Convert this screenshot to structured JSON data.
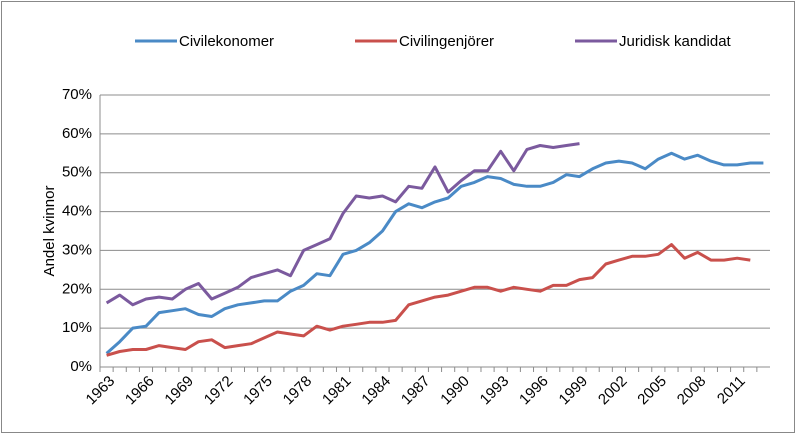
{
  "chart_data": {
    "type": "line",
    "y_label": "Andel kvinnor",
    "categories": [
      "1963",
      null,
      null,
      "1966",
      null,
      null,
      "1969",
      null,
      null,
      "1972",
      null,
      null,
      "1975",
      null,
      null,
      "1978",
      null,
      null,
      "1981",
      null,
      null,
      "1984",
      null,
      null,
      "1987",
      null,
      null,
      "1990",
      null,
      null,
      "1993",
      null,
      null,
      "1996",
      null,
      null,
      "1999",
      null,
      null,
      "2002",
      null,
      null,
      "2005",
      null,
      null,
      "2008",
      null,
      null,
      "2011",
      null,
      null
    ],
    "series": [
      {
        "name": "Civilekonomer",
        "color": "#4a8ac6",
        "values": [
          3.5,
          6.5,
          10,
          10.5,
          14,
          14.5,
          15,
          13.5,
          13,
          15,
          16,
          16.5,
          17,
          17,
          19.5,
          21,
          24,
          23.5,
          29,
          30,
          32,
          35,
          40,
          42,
          41,
          42.5,
          43.5,
          46.5,
          47.5,
          49,
          48.5,
          47,
          46.5,
          46.5,
          47.5,
          49.5,
          49,
          51,
          52.5,
          53,
          52.5,
          51,
          53.5,
          55,
          53.5,
          54.5,
          53,
          52,
          52,
          52.5,
          52.5
        ]
      },
      {
        "name": "Civilingenjörer",
        "color": "#c9504c",
        "values": [
          3,
          4,
          4.5,
          4.5,
          5.5,
          5,
          4.5,
          6.5,
          7,
          5,
          5.5,
          6,
          7.5,
          9,
          8.5,
          8,
          10.5,
          9.5,
          10.5,
          11,
          11.5,
          11.5,
          12,
          16,
          17,
          18,
          18.5,
          19.5,
          20.5,
          20.5,
          19.5,
          20.5,
          20,
          19.5,
          21,
          21,
          22.5,
          23,
          26.5,
          27.5,
          28.5,
          28.5,
          29,
          31.5,
          28,
          29.5,
          27.5,
          27.5,
          28,
          27.5,
          null
        ]
      },
      {
        "name": "Juridisk kandidat",
        "color": "#7b5a9e",
        "values": [
          16.5,
          18.5,
          16,
          17.5,
          18,
          17.5,
          20,
          21.5,
          17.5,
          19,
          20.5,
          23,
          24,
          25,
          23.5,
          30,
          31.5,
          33,
          39.5,
          44,
          43.5,
          44,
          42.5,
          46.5,
          46,
          51.5,
          45,
          48,
          50.5,
          50.5,
          55.5,
          50.5,
          56,
          57,
          56.5,
          57,
          57.5,
          null,
          null,
          null,
          null,
          null,
          null,
          null,
          null,
          null,
          null,
          null,
          null,
          null,
          null
        ]
      }
    ],
    "ylim": [
      0,
      70
    ],
    "yticks": [
      {
        "value": 0,
        "label": "0%"
      },
      {
        "value": 10,
        "label": "10%"
      },
      {
        "value": 20,
        "label": "20%"
      },
      {
        "value": 30,
        "label": "30%"
      },
      {
        "value": 40,
        "label": "40%"
      },
      {
        "value": 50,
        "label": "50%"
      },
      {
        "value": 60,
        "label": "60%"
      },
      {
        "value": 70,
        "label": "70%"
      }
    ],
    "grid": true,
    "legend": "top"
  }
}
